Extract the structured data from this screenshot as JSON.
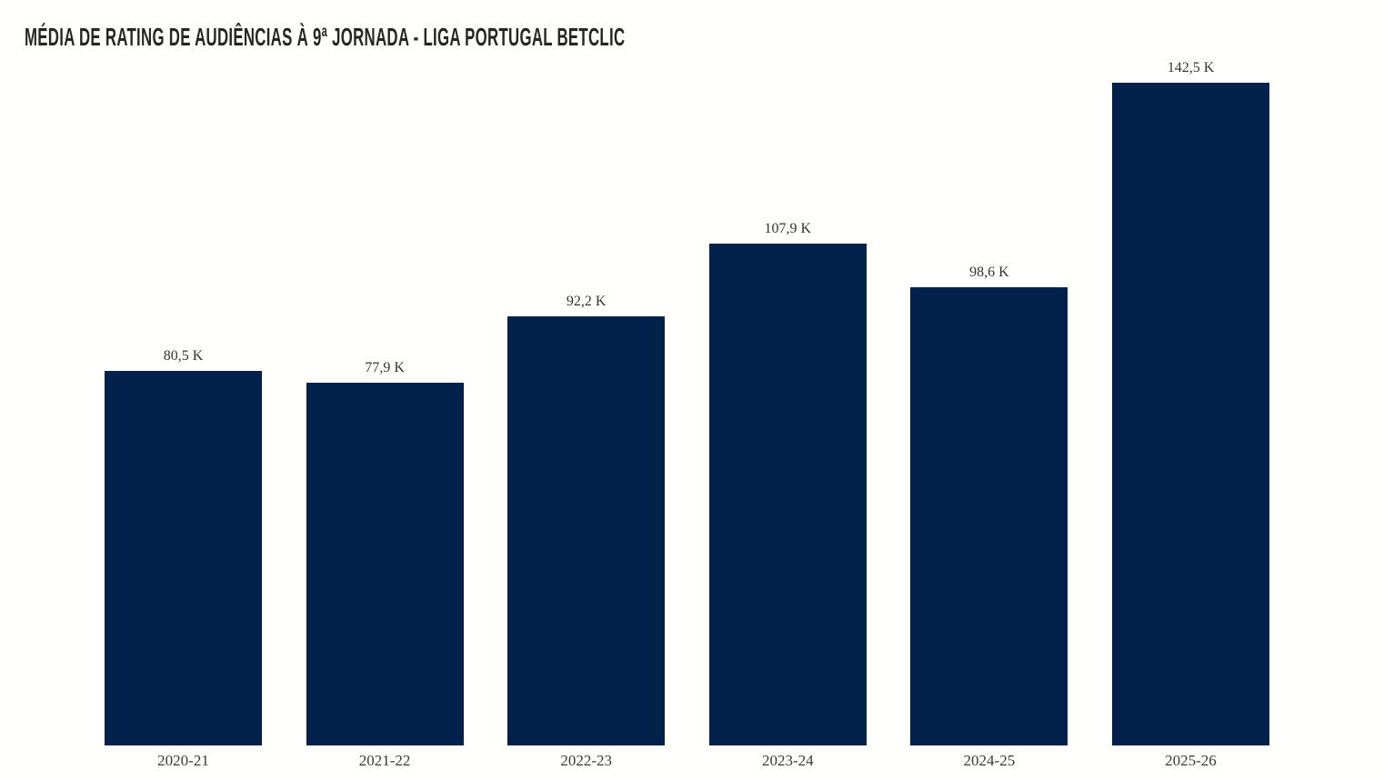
{
  "title": "MÉDIA DE RATING DE AUDIÊNCIAS À 9ª JORNADA - LIGA PORTUGAL BETCLIC",
  "colors": {
    "bar": "#03214d",
    "title_text": "#262626",
    "value_label_text": "#333333",
    "axis_label_text": "#3a3a3a",
    "background": "#fffffe"
  },
  "chart_data": {
    "type": "bar",
    "title": "MÉDIA DE RATING DE AUDIÊNCIAS À 9ª JORNADA - LIGA PORTUGAL BETCLIC",
    "categories": [
      "2020-21",
      "2021-22",
      "2022-23",
      "2023-24",
      "2024-25",
      "2025-26"
    ],
    "values": [
      80.5,
      77.9,
      92.2,
      107.9,
      98.6,
      142.5
    ],
    "value_labels": [
      "80,5 K",
      "77,9 K",
      "92,2 K",
      "107,9 K",
      "98,6 K",
      "142,5 K"
    ],
    "unit": "K",
    "xlabel": "",
    "ylabel": "",
    "ylim": [
      0,
      142.5
    ],
    "grid": false,
    "legend": null,
    "bar_color": "#03214d"
  }
}
